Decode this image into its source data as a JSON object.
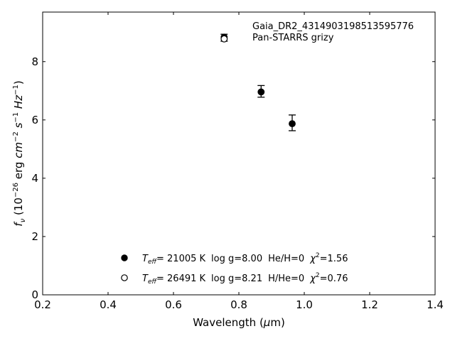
{
  "chart_data": {
    "type": "scatter",
    "xlabel": "Wavelength (μm)",
    "ylabel": "f_ν (10^−26 erg cm^−2 s^−1 Hz^−1)",
    "xlim": [
      0.2,
      1.4
    ],
    "ylim": [
      0,
      9.7
    ],
    "x_ticks": [
      0.2,
      0.4,
      0.6,
      0.8,
      1.0,
      1.2,
      1.4
    ],
    "x_tick_labels": [
      "0.2",
      "0.4",
      "0.6",
      "0.8",
      "1.0",
      "1.2",
      "1.4"
    ],
    "y_ticks": [
      0,
      2,
      4,
      6,
      8
    ],
    "y_tick_labels": [
      "0",
      "2",
      "4",
      "6",
      "8"
    ],
    "grid": false,
    "annotations": [
      "Gaia_DR2_4314903198513595776",
      "Pan-STARRS grizy"
    ],
    "observed": {
      "x": [
        0.755,
        0.868,
        0.963
      ],
      "y": [
        8.82,
        6.98,
        5.9
      ],
      "yerr": [
        0.12,
        0.2,
        0.27
      ]
    },
    "series": [
      {
        "marker": "filled-circle",
        "x": [
          0.755,
          0.868,
          0.963
        ],
        "y": [
          8.84,
          6.96,
          5.87
        ],
        "legend": {
          "teff": "= 21005 K",
          "logg": "log g=8.00",
          "comp": "He/H=0",
          "chi2": "=1.56"
        }
      },
      {
        "marker": "open-circle",
        "x": [
          0.755
        ],
        "y": [
          8.78
        ],
        "legend": {
          "teff": "= 26491 K",
          "logg": "log g=8.21",
          "comp": "H/He=0",
          "chi2": "=0.76"
        }
      }
    ],
    "legend_position": "lower-center"
  }
}
